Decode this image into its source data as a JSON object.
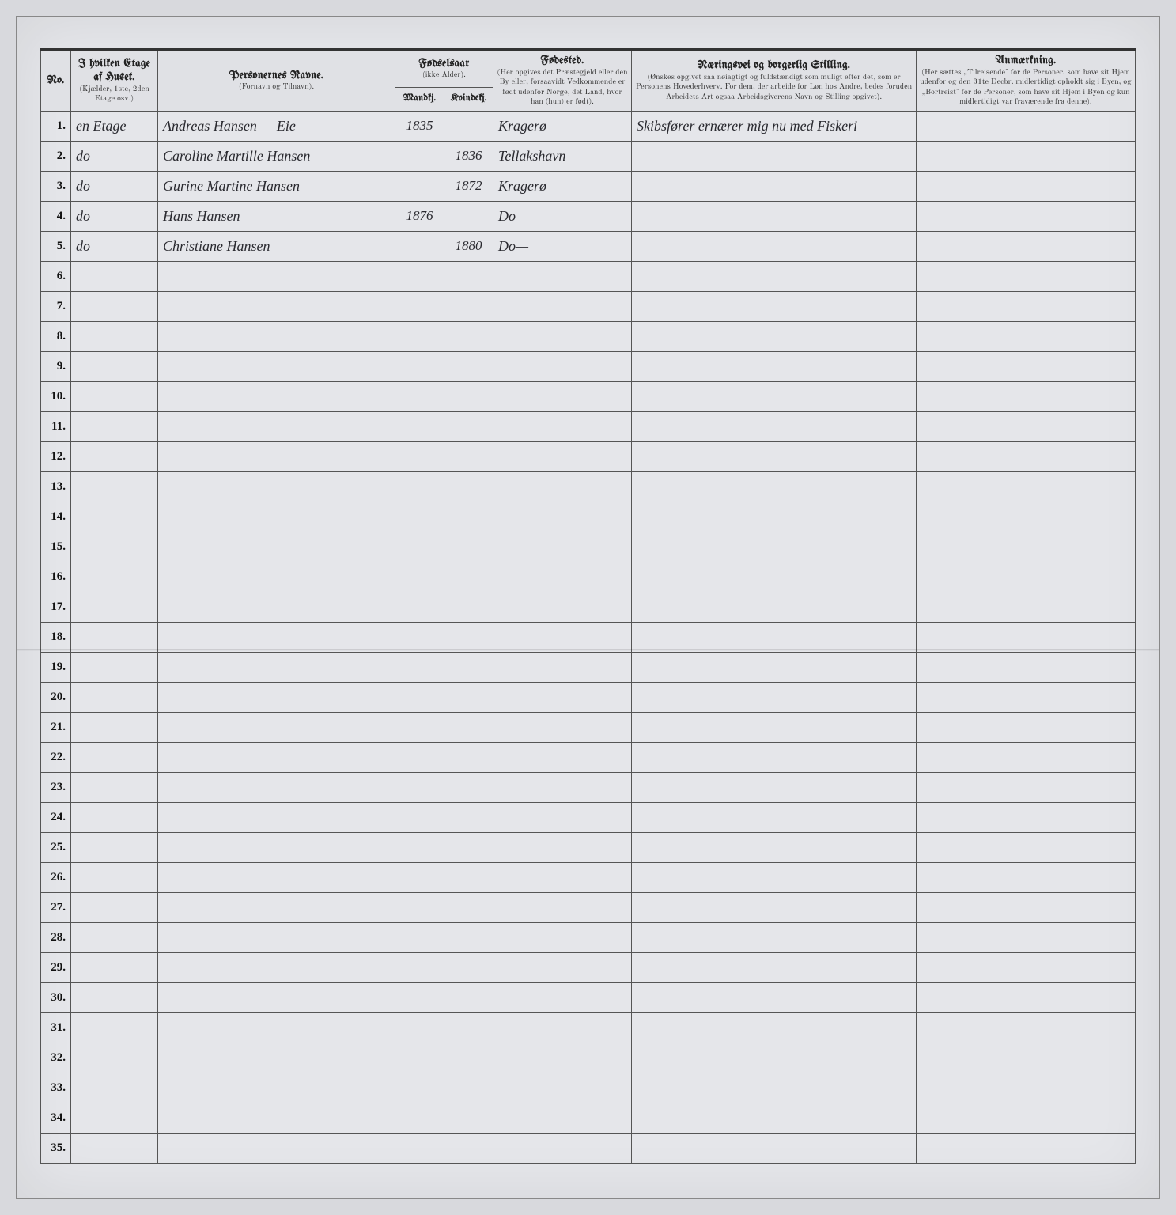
{
  "headers": {
    "no": "No.",
    "etage_title": "I hvilken Etage af Huset.",
    "etage_sub": "(Kjælder, 1ste, 2den Etage osv.)",
    "navne_title": "Personernes Navne.",
    "navne_sub": "(Fornavn og Tilnavn).",
    "fodselsaar_title": "Fødselsaar",
    "fodselsaar_sub": "(ikke Alder).",
    "mandkj": "Mandkj.",
    "kvindekj": "Kvindekj.",
    "fodested_title": "Fødested.",
    "fodested_sub": "(Her opgives det Præstegjeld eller den By eller, forsaavidt Vedkommende er født udenfor Norge, det Land, hvor han (hun) er født).",
    "naering_title": "Næringsvei og borgerlig Stilling.",
    "naering_sub": "(Ønskes opgivet saa nøiagtigt og fuldstændigt som muligt efter det, som er Personens Hovederhverv. For dem, der arbeide for Løn hos Andre, bedes foruden Arbeidets Art ogsaa Arbeidsgiverens Navn og Stilling opgivet).",
    "anm_title": "Anmærkning.",
    "anm_sub": "(Her sættes „Tilreisende\" for de Personer, som have sit Hjem udenfor og den 31te Decbr. midlertidigt opholdt sig i Byen, og „Bortreist\" for de Personer, som have sit Hjem i Byen og kun midlertidigt var fraværende fra denne)."
  },
  "rows": [
    {
      "no": "1.",
      "etage": "en Etage",
      "name": "Andreas Hansen — Eie",
      "m": "1835",
      "k": "",
      "fodested": "Kragerø",
      "naering": "Skibsfører ernærer mig nu med Fiskeri",
      "anm": ""
    },
    {
      "no": "2.",
      "etage": "do",
      "name": "Caroline Martille Hansen",
      "m": "",
      "k": "1836",
      "fodested": "Tellakshavn",
      "naering": "",
      "anm": ""
    },
    {
      "no": "3.",
      "etage": "do",
      "name": "Gurine Martine Hansen",
      "m": "",
      "k": "1872",
      "fodested": "Kragerø",
      "naering": "",
      "anm": ""
    },
    {
      "no": "4.",
      "etage": "do",
      "name": "Hans Hansen",
      "m": "1876",
      "k": "",
      "fodested": "Do",
      "naering": "",
      "anm": ""
    },
    {
      "no": "5.",
      "etage": "do",
      "name": "Christiane Hansen",
      "m": "",
      "k": "1880",
      "fodested": "Do—",
      "naering": "",
      "anm": ""
    },
    {
      "no": "6.",
      "etage": "",
      "name": "",
      "m": "",
      "k": "",
      "fodested": "",
      "naering": "",
      "anm": ""
    },
    {
      "no": "7.",
      "etage": "",
      "name": "",
      "m": "",
      "k": "",
      "fodested": "",
      "naering": "",
      "anm": ""
    },
    {
      "no": "8.",
      "etage": "",
      "name": "",
      "m": "",
      "k": "",
      "fodested": "",
      "naering": "",
      "anm": ""
    },
    {
      "no": "9.",
      "etage": "",
      "name": "",
      "m": "",
      "k": "",
      "fodested": "",
      "naering": "",
      "anm": ""
    },
    {
      "no": "10.",
      "etage": "",
      "name": "",
      "m": "",
      "k": "",
      "fodested": "",
      "naering": "",
      "anm": ""
    },
    {
      "no": "11.",
      "etage": "",
      "name": "",
      "m": "",
      "k": "",
      "fodested": "",
      "naering": "",
      "anm": ""
    },
    {
      "no": "12.",
      "etage": "",
      "name": "",
      "m": "",
      "k": "",
      "fodested": "",
      "naering": "",
      "anm": ""
    },
    {
      "no": "13.",
      "etage": "",
      "name": "",
      "m": "",
      "k": "",
      "fodested": "",
      "naering": "",
      "anm": ""
    },
    {
      "no": "14.",
      "etage": "",
      "name": "",
      "m": "",
      "k": "",
      "fodested": "",
      "naering": "",
      "anm": ""
    },
    {
      "no": "15.",
      "etage": "",
      "name": "",
      "m": "",
      "k": "",
      "fodested": "",
      "naering": "",
      "anm": ""
    },
    {
      "no": "16.",
      "etage": "",
      "name": "",
      "m": "",
      "k": "",
      "fodested": "",
      "naering": "",
      "anm": ""
    },
    {
      "no": "17.",
      "etage": "",
      "name": "",
      "m": "",
      "k": "",
      "fodested": "",
      "naering": "",
      "anm": ""
    },
    {
      "no": "18.",
      "etage": "",
      "name": "",
      "m": "",
      "k": "",
      "fodested": "",
      "naering": "",
      "anm": ""
    },
    {
      "no": "19.",
      "etage": "",
      "name": "",
      "m": "",
      "k": "",
      "fodested": "",
      "naering": "",
      "anm": ""
    },
    {
      "no": "20.",
      "etage": "",
      "name": "",
      "m": "",
      "k": "",
      "fodested": "",
      "naering": "",
      "anm": ""
    },
    {
      "no": "21.",
      "etage": "",
      "name": "",
      "m": "",
      "k": "",
      "fodested": "",
      "naering": "",
      "anm": ""
    },
    {
      "no": "22.",
      "etage": "",
      "name": "",
      "m": "",
      "k": "",
      "fodested": "",
      "naering": "",
      "anm": ""
    },
    {
      "no": "23.",
      "etage": "",
      "name": "",
      "m": "",
      "k": "",
      "fodested": "",
      "naering": "",
      "anm": ""
    },
    {
      "no": "24.",
      "etage": "",
      "name": "",
      "m": "",
      "k": "",
      "fodested": "",
      "naering": "",
      "anm": ""
    },
    {
      "no": "25.",
      "etage": "",
      "name": "",
      "m": "",
      "k": "",
      "fodested": "",
      "naering": "",
      "anm": ""
    },
    {
      "no": "26.",
      "etage": "",
      "name": "",
      "m": "",
      "k": "",
      "fodested": "",
      "naering": "",
      "anm": ""
    },
    {
      "no": "27.",
      "etage": "",
      "name": "",
      "m": "",
      "k": "",
      "fodested": "",
      "naering": "",
      "anm": ""
    },
    {
      "no": "28.",
      "etage": "",
      "name": "",
      "m": "",
      "k": "",
      "fodested": "",
      "naering": "",
      "anm": ""
    },
    {
      "no": "29.",
      "etage": "",
      "name": "",
      "m": "",
      "k": "",
      "fodested": "",
      "naering": "",
      "anm": ""
    },
    {
      "no": "30.",
      "etage": "",
      "name": "",
      "m": "",
      "k": "",
      "fodested": "",
      "naering": "",
      "anm": ""
    },
    {
      "no": "31.",
      "etage": "",
      "name": "",
      "m": "",
      "k": "",
      "fodested": "",
      "naering": "",
      "anm": ""
    },
    {
      "no": "32.",
      "etage": "",
      "name": "",
      "m": "",
      "k": "",
      "fodested": "",
      "naering": "",
      "anm": ""
    },
    {
      "no": "33.",
      "etage": "",
      "name": "",
      "m": "",
      "k": "",
      "fodested": "",
      "naering": "",
      "anm": ""
    },
    {
      "no": "34.",
      "etage": "",
      "name": "",
      "m": "",
      "k": "",
      "fodested": "",
      "naering": "",
      "anm": ""
    },
    {
      "no": "35.",
      "etage": "",
      "name": "",
      "m": "",
      "k": "",
      "fodested": "",
      "naering": "",
      "anm": ""
    }
  ],
  "colors": {
    "page_bg": "#e5e6ea",
    "border": "#555555",
    "ink": "#2a2a30"
  }
}
